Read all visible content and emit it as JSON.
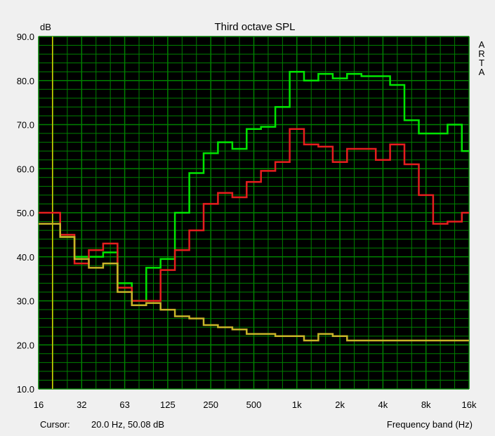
{
  "chart_data": {
    "type": "line",
    "title": "Third octave SPL",
    "ylabel": "dB",
    "xlabel": "Frequency band (Hz)",
    "ylim": [
      10,
      90
    ],
    "yticks": [
      "10.0",
      "20.0",
      "30.0",
      "40.0",
      "50.0",
      "60.0",
      "70.0",
      "80.0",
      "90.0"
    ],
    "x_scale": "log",
    "xticks": [
      "16",
      "32",
      "63",
      "125",
      "250",
      "500",
      "1k",
      "2k",
      "4k",
      "8k",
      "16k"
    ],
    "x": [
      16,
      20,
      25,
      31.5,
      40,
      50,
      63,
      80,
      100,
      125,
      160,
      200,
      250,
      315,
      400,
      500,
      630,
      800,
      1000,
      1250,
      1600,
      2000,
      2500,
      3150,
      4000,
      5000,
      6300,
      8000,
      10000,
      12500,
      16000
    ],
    "grid": true,
    "background": "#000000",
    "grid_color": "#008000",
    "series": [
      {
        "color": "#00e600",
        "values": [
          47.5,
          47.5,
          44.5,
          40.0,
          40.0,
          41.0,
          34.0,
          30.0,
          37.5,
          39.5,
          50.0,
          59.0,
          63.5,
          66.0,
          64.5,
          69.0,
          69.5,
          74.0,
          82.0,
          80.0,
          81.5,
          80.5,
          81.5,
          81.0,
          81.0,
          79.0,
          71.0,
          68.0,
          68.0,
          70.0,
          64.0
        ]
      },
      {
        "color": "#e61e1e",
        "values": [
          50.0,
          50.0,
          45.0,
          38.5,
          41.5,
          43.0,
          33.0,
          30.0,
          30.0,
          37.0,
          41.5,
          46.0,
          52.0,
          54.5,
          53.5,
          57.0,
          59.5,
          61.5,
          69.0,
          65.5,
          65.0,
          61.5,
          64.5,
          64.5,
          62.0,
          65.5,
          61.0,
          54.0,
          47.5,
          48.0,
          50.0
        ]
      },
      {
        "color": "#c8b428",
        "values": [
          47.5,
          47.5,
          44.5,
          39.5,
          37.5,
          38.5,
          32.0,
          29.0,
          29.5,
          28.0,
          26.5,
          26.0,
          24.5,
          24.0,
          23.5,
          22.5,
          22.5,
          22.0,
          22.0,
          21.0,
          22.5,
          22.0,
          21.0,
          21.0,
          21.0,
          21.0,
          21.0,
          21.0,
          21.0,
          21.0,
          21.0
        ]
      }
    ],
    "cursor": {
      "x": 20,
      "color": "#dcc800"
    }
  },
  "watermark": [
    "A",
    "R",
    "T",
    "A"
  ],
  "status": {
    "cursor_label": "Cursor:",
    "cursor_value": "20.0 Hz, 50.08 dB"
  }
}
